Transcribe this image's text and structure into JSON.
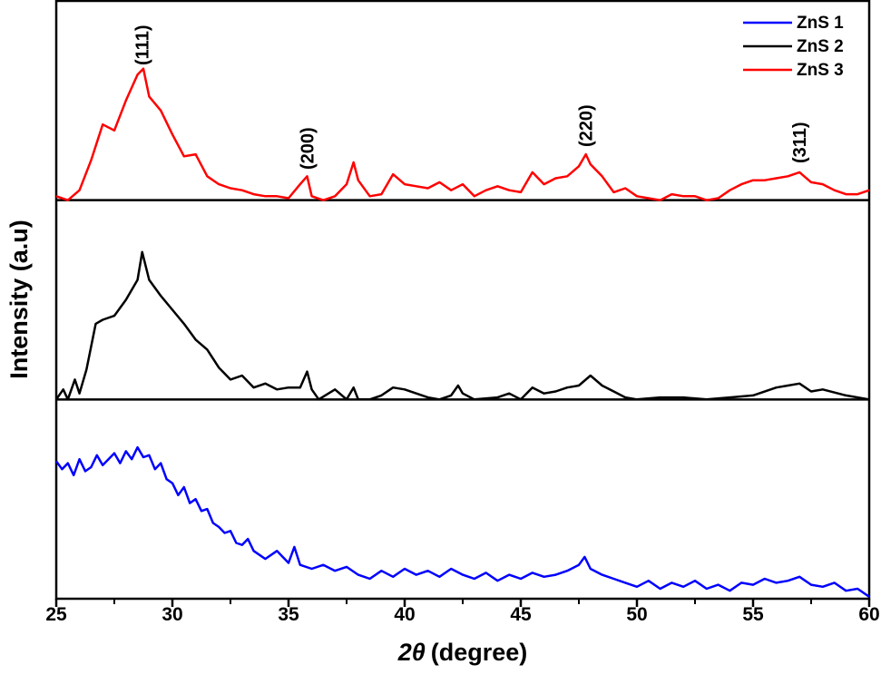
{
  "chart_data": {
    "type": "line",
    "layout": "stacked-panels",
    "title": "",
    "xlabel_symbol": "2θ",
    "xlabel_unit": "(degree)",
    "ylabel": "Intensity (a.u)",
    "xlim": [
      25,
      60
    ],
    "xticks": [
      25,
      30,
      35,
      40,
      45,
      50,
      55,
      60
    ],
    "y_ticks_shown": false,
    "grid": false,
    "legend": {
      "position": "top-right",
      "entries": [
        "ZnS 1",
        "ZnS 2",
        "ZnS 3"
      ]
    },
    "peak_labels": [
      {
        "text": "(111)",
        "x": 28.7
      },
      {
        "text": "(200)",
        "x": 35.8
      },
      {
        "text": "(220)",
        "x": 47.8
      },
      {
        "text": "(311)",
        "x": 57.0
      }
    ],
    "series": [
      {
        "name": "ZnS 1",
        "color": "#0000ff",
        "panel": "bottom",
        "x": [
          25,
          25.25,
          25.5,
          25.75,
          26,
          26.25,
          26.5,
          26.75,
          27,
          27.25,
          27.5,
          27.75,
          28,
          28.25,
          28.5,
          28.75,
          29,
          29.25,
          29.5,
          29.75,
          30,
          30.25,
          30.5,
          30.75,
          31,
          31.25,
          31.5,
          31.75,
          32,
          32.25,
          32.5,
          32.75,
          33,
          33.25,
          33.5,
          33.75,
          34,
          34.5,
          35,
          35.25,
          35.5,
          36,
          36.5,
          37,
          37.5,
          38,
          38.5,
          39,
          39.5,
          40,
          40.5,
          41,
          41.5,
          42,
          42.5,
          43,
          43.5,
          44,
          44.5,
          45,
          45.5,
          46,
          46.5,
          47,
          47.5,
          47.75,
          48,
          48.5,
          49,
          49.5,
          50,
          50.5,
          51,
          51.5,
          52,
          52.5,
          53,
          53.5,
          54,
          54.5,
          55,
          55.5,
          56,
          56.5,
          57,
          57.5,
          58,
          58.5,
          59,
          59.5,
          60
        ],
        "y": [
          0.69,
          0.65,
          0.68,
          0.62,
          0.7,
          0.64,
          0.66,
          0.72,
          0.67,
          0.7,
          0.73,
          0.68,
          0.74,
          0.7,
          0.76,
          0.71,
          0.72,
          0.65,
          0.68,
          0.6,
          0.58,
          0.52,
          0.56,
          0.48,
          0.5,
          0.44,
          0.45,
          0.38,
          0.36,
          0.33,
          0.34,
          0.28,
          0.27,
          0.3,
          0.24,
          0.22,
          0.2,
          0.24,
          0.18,
          0.26,
          0.17,
          0.15,
          0.17,
          0.14,
          0.16,
          0.12,
          0.1,
          0.14,
          0.11,
          0.15,
          0.12,
          0.14,
          0.11,
          0.15,
          0.12,
          0.1,
          0.13,
          0.09,
          0.12,
          0.1,
          0.13,
          0.11,
          0.12,
          0.14,
          0.17,
          0.21,
          0.15,
          0.12,
          0.1,
          0.08,
          0.06,
          0.09,
          0.05,
          0.08,
          0.06,
          0.09,
          0.05,
          0.07,
          0.04,
          0.08,
          0.07,
          0.1,
          0.08,
          0.09,
          0.11,
          0.07,
          0.06,
          0.08,
          0.04,
          0.05,
          0.01
        ]
      },
      {
        "name": "ZnS 2",
        "color": "#000000",
        "panel": "middle",
        "x": [
          25,
          25.3,
          25.5,
          25.8,
          26,
          26.3,
          26.7,
          27,
          27.5,
          28,
          28.5,
          28.7,
          29,
          29.5,
          30,
          30.5,
          31,
          31.5,
          32,
          32.5,
          33,
          33.5,
          34,
          34.5,
          35,
          35.5,
          35.8,
          36,
          36.3,
          37,
          37.5,
          37.8,
          38,
          38.5,
          39,
          39.5,
          40,
          40.5,
          41,
          41.5,
          42,
          42.3,
          42.5,
          43,
          44,
          44.5,
          45,
          45.5,
          46,
          46.5,
          47,
          47.5,
          48,
          48.5,
          49,
          49.5,
          50,
          51,
          52,
          53,
          54,
          55,
          56,
          56.5,
          57,
          57.5,
          58,
          59,
          60
        ],
        "y": [
          0.0,
          0.05,
          0.0,
          0.1,
          0.03,
          0.15,
          0.38,
          0.4,
          0.42,
          0.5,
          0.6,
          0.74,
          0.6,
          0.52,
          0.45,
          0.38,
          0.3,
          0.25,
          0.16,
          0.1,
          0.12,
          0.06,
          0.08,
          0.05,
          0.06,
          0.06,
          0.14,
          0.05,
          0.0,
          0.05,
          0.0,
          0.06,
          0.0,
          0.0,
          0.02,
          0.06,
          0.05,
          0.03,
          0.01,
          0.0,
          0.02,
          0.07,
          0.03,
          0.0,
          0.01,
          0.03,
          0.0,
          0.06,
          0.03,
          0.04,
          0.06,
          0.07,
          0.12,
          0.07,
          0.04,
          0.01,
          0.0,
          0.01,
          0.01,
          0.0,
          0.01,
          0.02,
          0.06,
          0.07,
          0.08,
          0.04,
          0.05,
          0.02,
          0.0
        ]
      },
      {
        "name": "ZnS 3",
        "color": "#ff0000",
        "panel": "top",
        "x": [
          25,
          25.5,
          26,
          26.5,
          27,
          27.5,
          28,
          28.5,
          28.75,
          29,
          29.5,
          30,
          30.5,
          31,
          31.5,
          32,
          32.5,
          33,
          33.5,
          34,
          34.5,
          35,
          35.5,
          35.8,
          36,
          36.5,
          37,
          37.5,
          37.8,
          38,
          38.5,
          39,
          39.5,
          40,
          40.5,
          41,
          41.5,
          42,
          42.5,
          43,
          43.5,
          44,
          44.5,
          45,
          45.5,
          46,
          46.5,
          47,
          47.5,
          47.8,
          48,
          48.5,
          49,
          49.5,
          50,
          50.5,
          51,
          51.5,
          52,
          52.5,
          53,
          53.5,
          54,
          54.5,
          55,
          55.5,
          56,
          56.5,
          57,
          57.5,
          58,
          58.5,
          59,
          59.5,
          60
        ],
        "y": [
          0.02,
          0.0,
          0.05,
          0.2,
          0.38,
          0.35,
          0.5,
          0.63,
          0.66,
          0.52,
          0.45,
          0.33,
          0.22,
          0.23,
          0.12,
          0.08,
          0.06,
          0.05,
          0.03,
          0.02,
          0.02,
          0.01,
          0.08,
          0.12,
          0.02,
          0.0,
          0.02,
          0.08,
          0.19,
          0.1,
          0.02,
          0.03,
          0.13,
          0.08,
          0.07,
          0.06,
          0.09,
          0.05,
          0.08,
          0.02,
          0.05,
          0.07,
          0.05,
          0.04,
          0.14,
          0.08,
          0.11,
          0.12,
          0.17,
          0.23,
          0.18,
          0.12,
          0.04,
          0.06,
          0.02,
          0.01,
          0.0,
          0.03,
          0.02,
          0.02,
          0.0,
          0.01,
          0.05,
          0.08,
          0.1,
          0.1,
          0.11,
          0.12,
          0.14,
          0.09,
          0.08,
          0.05,
          0.03,
          0.03,
          0.05
        ]
      }
    ]
  }
}
